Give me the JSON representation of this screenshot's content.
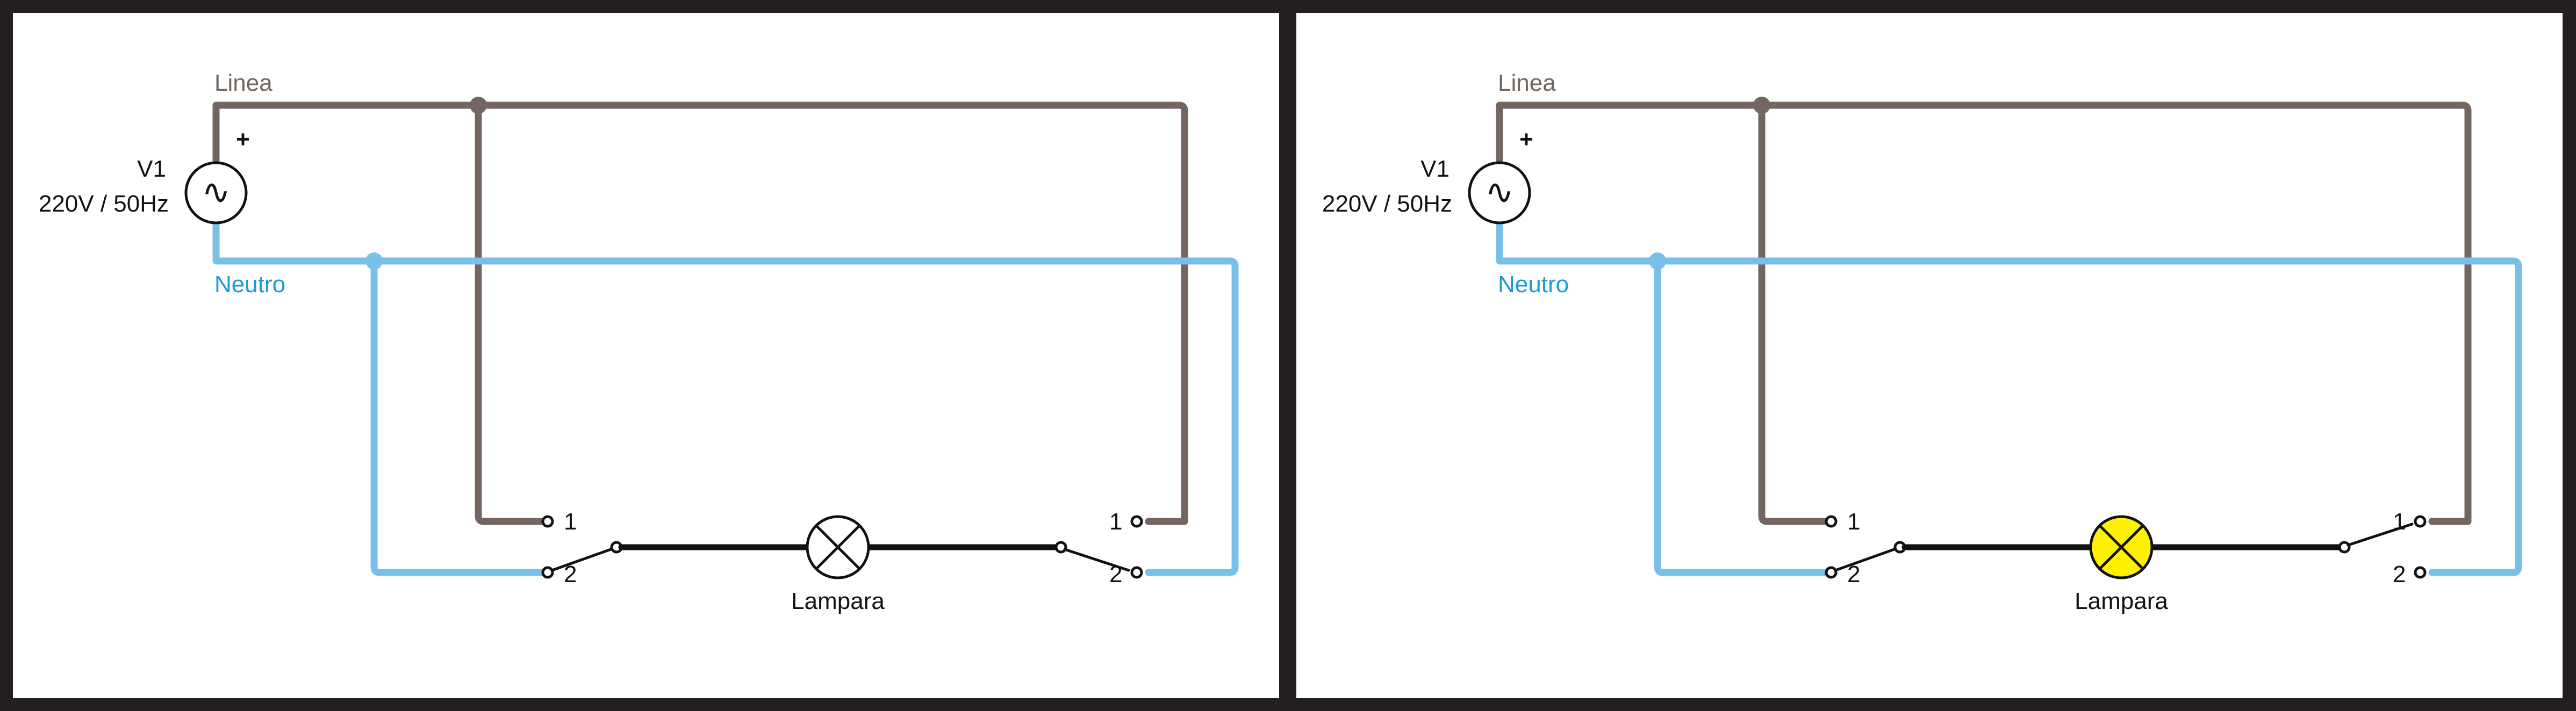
{
  "colors": {
    "line_wire": "#736660",
    "neutral_wire": "#78c0e8",
    "load_wire": "#111111",
    "lamp_off": "#ffffff",
    "lamp_on": "#fff200",
    "frame": "#231f20"
  },
  "panels": [
    {
      "source": {
        "name": "V1",
        "rating": "220V / 50Hz",
        "polarity": "+",
        "symbol": "∿"
      },
      "line_label": "Linea",
      "neutral_label": "Neutro",
      "lamp": {
        "label": "Lampara",
        "lit": false
      },
      "switch_left": {
        "terminal_1": "1",
        "terminal_2": "2",
        "position": "2"
      },
      "switch_right": {
        "terminal_1": "1",
        "terminal_2": "2",
        "position": "2"
      }
    },
    {
      "source": {
        "name": "V1",
        "rating": "220V / 50Hz",
        "polarity": "+",
        "symbol": "∿"
      },
      "line_label": "Linea",
      "neutral_label": "Neutro",
      "lamp": {
        "label": "Lampara",
        "lit": true
      },
      "switch_left": {
        "terminal_1": "1",
        "terminal_2": "2",
        "position": "2"
      },
      "switch_right": {
        "terminal_1": "1",
        "terminal_2": "2",
        "position": "1"
      }
    }
  ]
}
